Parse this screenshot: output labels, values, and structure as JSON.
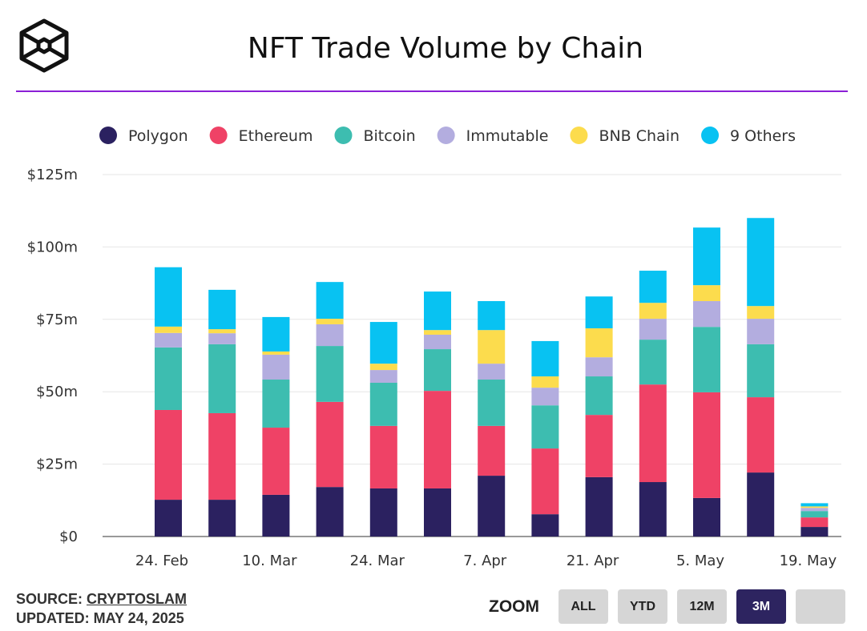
{
  "header": {
    "title": "NFT Trade Volume by Chain",
    "logo": "cube-logo"
  },
  "footer": {
    "source_label": "SOURCE:",
    "source_name": "CRYPTOSLAM",
    "updated": "UPDATED: MAY 24, 2025"
  },
  "zoom": {
    "label": "ZOOM",
    "buttons": [
      "ALL",
      "YTD",
      "12M",
      "3M",
      ""
    ],
    "active": "3M"
  },
  "chart_data": {
    "type": "bar",
    "stacked": true,
    "title": "NFT Trade Volume by Chain",
    "ylabel": "",
    "xlabel": "",
    "ylim": [
      0,
      125
    ],
    "yticks": [
      0,
      25,
      50,
      75,
      100,
      125
    ],
    "ytick_labels": [
      "$0",
      "$25m",
      "$50m",
      "$75m",
      "$100m",
      "$125m"
    ],
    "xtick_labels": [
      "24. Feb",
      "10. Mar",
      "24. Mar",
      "7. Apr",
      "21. Apr",
      "5. May",
      "19. May"
    ],
    "categories": [
      "24. Feb",
      "3. Mar",
      "10. Mar",
      "17. Mar",
      "24. Mar",
      "31. Mar",
      "7. Apr",
      "14. Apr",
      "21. Apr",
      "28. Apr",
      "5. May",
      "12. May",
      "19. May"
    ],
    "legend_position": "top",
    "grid": true,
    "series": [
      {
        "name": "Polygon",
        "color": "#2b2160",
        "values": [
          12.7,
          12.7,
          14.4,
          17.1,
          16.6,
          16.6,
          21.0,
          7.7,
          20.5,
          18.8,
          13.3,
          22.1,
          3.3
        ]
      },
      {
        "name": "Ethereum",
        "color": "#ef4266",
        "values": [
          31.0,
          29.9,
          23.2,
          29.4,
          21.6,
          33.7,
          17.2,
          22.7,
          21.5,
          33.7,
          36.5,
          26.0,
          3.3
        ]
      },
      {
        "name": "Bitcoin",
        "color": "#3dbdb0",
        "values": [
          21.6,
          23.8,
          16.6,
          19.3,
          14.9,
          14.4,
          16.0,
          14.9,
          13.3,
          15.5,
          22.6,
          18.3,
          2.2
        ]
      },
      {
        "name": "Immutable",
        "color": "#b3addf",
        "values": [
          5.0,
          3.8,
          8.6,
          7.5,
          4.4,
          5.0,
          5.5,
          6.1,
          6.6,
          7.2,
          8.9,
          8.8,
          1.1
        ]
      },
      {
        "name": "BNB Chain",
        "color": "#fcdc4d",
        "values": [
          2.2,
          1.4,
          1.1,
          1.9,
          2.2,
          1.6,
          11.6,
          3.9,
          10.0,
          5.5,
          5.5,
          4.4,
          0.5
        ]
      },
      {
        "name": "9 Others",
        "color": "#08c2f2",
        "values": [
          20.5,
          13.6,
          11.9,
          12.7,
          14.4,
          13.3,
          10.0,
          12.2,
          11.0,
          11.1,
          19.9,
          30.4,
          1.1
        ]
      }
    ]
  }
}
